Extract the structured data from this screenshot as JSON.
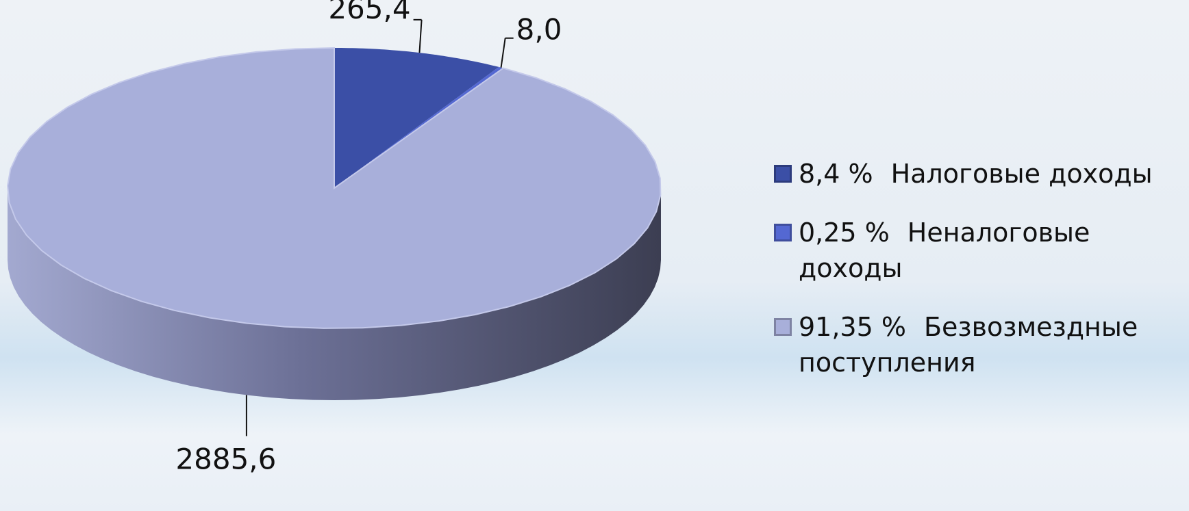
{
  "chart_data": {
    "type": "pie",
    "categories": [
      "Налоговые доходы",
      "Неналоговые доходы",
      "Безвозмездные поступления"
    ],
    "values": [
      265.4,
      8.0,
      2885.6
    ],
    "value_labels": [
      "265,4",
      "8,0",
      "2885,6"
    ],
    "percentages": [
      8.4,
      0.25,
      91.35
    ],
    "percentage_labels": [
      "8,4 %",
      "0,25 %",
      "91,35 %"
    ],
    "colors": [
      "#3b4fa6",
      "#5468d2",
      "#a8afda"
    ],
    "legend": "right"
  }
}
